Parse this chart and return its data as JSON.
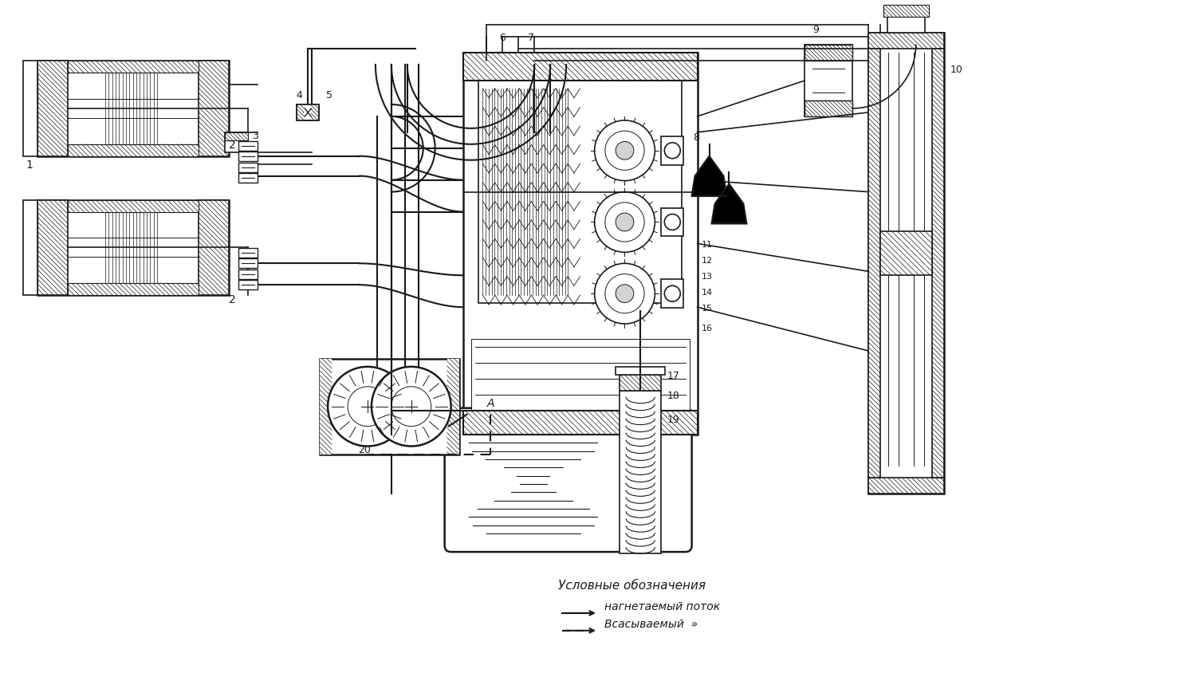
{
  "background_color": "#ffffff",
  "line_color": "#1a1a1a",
  "figsize": [
    15.0,
    8.44
  ],
  "dpi": 100,
  "legend_title": "Условные обозначения",
  "legend_pressure": "нагнетаемый поток",
  "legend_suction": "Всасываемый  »"
}
